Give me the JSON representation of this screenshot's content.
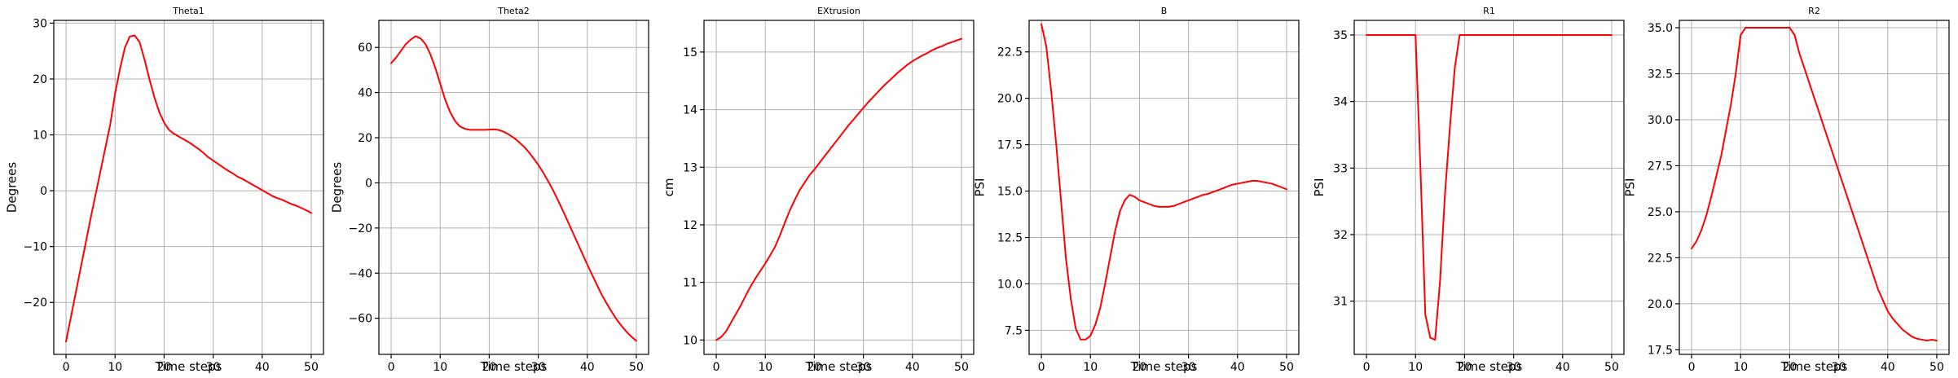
{
  "figure": {
    "background": "#ffffff",
    "line_color": "#ff0000",
    "grid": true
  },
  "chart_data": [
    {
      "type": "line",
      "title": "Theta1",
      "xlabel": "Time steps",
      "ylabel": "Degrees",
      "xlim": [
        -2.5,
        52.5
      ],
      "ylim": [
        -29.3,
        30.5
      ],
      "xticks": [
        0,
        10,
        20,
        30,
        40,
        50
      ],
      "xticklabels": [
        "0",
        "10",
        "20",
        "30",
        "40",
        "50"
      ],
      "yticks": [
        -20,
        -10,
        0,
        10,
        20,
        30
      ],
      "yticklabels": [
        "−20",
        "−10",
        "0",
        "10",
        "20",
        "30"
      ],
      "grid": true,
      "x": [
        0,
        1,
        2,
        3,
        4,
        5,
        6,
        7,
        8,
        9,
        10,
        11,
        12,
        13,
        14,
        15,
        16,
        17,
        18,
        19,
        20,
        21,
        22,
        23,
        24,
        25,
        26,
        27,
        28,
        29,
        30,
        31,
        32,
        33,
        34,
        35,
        36,
        37,
        38,
        39,
        40,
        41,
        42,
        43,
        44,
        45,
        46,
        47,
        48,
        49,
        50
      ],
      "series": [
        {
          "color": "#ff0000",
          "values": [
            -27,
            -22.6,
            -18.2,
            -13.8,
            -9.4,
            -5,
            -0.8,
            3.4,
            7.6,
            11.8,
            17.4,
            21.8,
            25.6,
            27.6,
            27.8,
            26.6,
            23.5,
            20,
            16.8,
            14.1,
            12.2,
            10.9,
            10.2,
            9.7,
            9.2,
            8.7,
            8.1,
            7.5,
            6.8,
            6,
            5.4,
            4.8,
            4.2,
            3.6,
            3.1,
            2.5,
            2.1,
            1.6,
            1.1,
            0.6,
            0.1,
            -0.4,
            -0.9,
            -1.3,
            -1.6,
            -2,
            -2.4,
            -2.7,
            -3.1,
            -3.5,
            -4
          ]
        }
      ]
    },
    {
      "type": "line",
      "title": "Theta2",
      "xlabel": "Time steps",
      "ylabel": "Degrees",
      "xlim": [
        -2.5,
        52.5
      ],
      "ylim": [
        -76,
        72
      ],
      "xticks": [
        0,
        10,
        20,
        30,
        40,
        50
      ],
      "xticklabels": [
        "0",
        "10",
        "20",
        "30",
        "40",
        "50"
      ],
      "yticks": [
        -60,
        -40,
        -20,
        0,
        20,
        40,
        60
      ],
      "yticklabels": [
        "−60",
        "−40",
        "−20",
        "0",
        "20",
        "40",
        "60"
      ],
      "grid": true,
      "x": [
        0,
        1,
        2,
        3,
        4,
        5,
        6,
        7,
        8,
        9,
        10,
        11,
        12,
        13,
        14,
        15,
        16,
        17,
        18,
        19,
        20,
        21,
        22,
        23,
        24,
        25,
        26,
        27,
        28,
        29,
        30,
        31,
        32,
        33,
        34,
        35,
        36,
        37,
        38,
        39,
        40,
        41,
        42,
        43,
        44,
        45,
        46,
        47,
        48,
        49,
        50
      ],
      "series": [
        {
          "color": "#ff0000",
          "values": [
            53,
            55.5,
            58.5,
            61.5,
            63.5,
            65,
            64,
            61.5,
            57,
            51,
            44,
            37,
            31.5,
            27.5,
            25,
            24,
            23.5,
            23.5,
            23.5,
            23.5,
            23.6,
            23.7,
            23.4,
            22.6,
            21.4,
            20,
            18.2,
            16.2,
            13.8,
            11,
            8,
            4.6,
            0.8,
            -3.2,
            -7.6,
            -12.2,
            -17,
            -21.8,
            -26.6,
            -31.4,
            -36.2,
            -40.8,
            -45.4,
            -49.8,
            -53.6,
            -57.2,
            -60.6,
            -63.4,
            -66,
            -68.2,
            -70
          ]
        }
      ]
    },
    {
      "type": "line",
      "title": "EXtrusion",
      "xlabel": "Time steps",
      "ylabel": "cm",
      "xlim": [
        -2.5,
        52.5
      ],
      "ylim": [
        9.75,
        15.55
      ],
      "xticks": [
        0,
        10,
        20,
        30,
        40,
        50
      ],
      "xticklabels": [
        "0",
        "10",
        "20",
        "30",
        "40",
        "50"
      ],
      "yticks": [
        10,
        11,
        12,
        13,
        14,
        15
      ],
      "yticklabels": [
        "10",
        "11",
        "12",
        "13",
        "14",
        "15"
      ],
      "grid": true,
      "x": [
        0,
        1,
        2,
        3,
        4,
        5,
        6,
        7,
        8,
        9,
        10,
        11,
        12,
        13,
        14,
        15,
        16,
        17,
        18,
        19,
        20,
        21,
        22,
        23,
        24,
        25,
        26,
        27,
        28,
        29,
        30,
        31,
        32,
        33,
        34,
        35,
        36,
        37,
        38,
        39,
        40,
        41,
        42,
        43,
        44,
        45,
        46,
        47,
        48,
        49,
        50
      ],
      "series": [
        {
          "color": "#ff0000",
          "values": [
            10,
            10.05,
            10.15,
            10.3,
            10.45,
            10.6,
            10.77,
            10.93,
            11.07,
            11.2,
            11.33,
            11.47,
            11.62,
            11.82,
            12.04,
            12.25,
            12.43,
            12.6,
            12.73,
            12.86,
            12.96,
            13.07,
            13.18,
            13.29,
            13.4,
            13.51,
            13.62,
            13.73,
            13.83,
            13.93,
            14.03,
            14.13,
            14.22,
            14.31,
            14.4,
            14.48,
            14.56,
            14.64,
            14.71,
            14.78,
            14.84,
            14.89,
            14.94,
            14.98,
            15.03,
            15.07,
            15.1,
            15.14,
            15.17,
            15.2,
            15.23
          ]
        }
      ]
    },
    {
      "type": "line",
      "title": "B",
      "xlabel": "Time steps",
      "ylabel": "PSI",
      "xlim": [
        -2.5,
        52.5
      ],
      "ylim": [
        6.2,
        24.2
      ],
      "xticks": [
        0,
        10,
        20,
        30,
        40,
        50
      ],
      "xticklabels": [
        "0",
        "10",
        "20",
        "30",
        "40",
        "50"
      ],
      "yticks": [
        7.5,
        10.0,
        12.5,
        15.0,
        17.5,
        20.0,
        22.5
      ],
      "yticklabels": [
        "7.5",
        "10.0",
        "12.5",
        "15.0",
        "17.5",
        "20.0",
        "22.5"
      ],
      "grid": true,
      "x": [
        0,
        1,
        2,
        3,
        4,
        5,
        6,
        7,
        8,
        9,
        10,
        11,
        12,
        13,
        14,
        15,
        16,
        17,
        18,
        19,
        20,
        21,
        22,
        23,
        24,
        25,
        26,
        27,
        28,
        29,
        30,
        31,
        32,
        33,
        34,
        35,
        36,
        37,
        38,
        39,
        40,
        41,
        42,
        43,
        44,
        45,
        46,
        47,
        48,
        49,
        50
      ],
      "series": [
        {
          "color": "#ff0000",
          "values": [
            24,
            22.8,
            20.4,
            17.6,
            14.5,
            11.4,
            9.2,
            7.6,
            7,
            7,
            7.2,
            7.8,
            8.7,
            10,
            11.4,
            12.8,
            13.9,
            14.5,
            14.8,
            14.7,
            14.5,
            14.4,
            14.3,
            14.2,
            14.15,
            14.15,
            14.15,
            14.2,
            14.3,
            14.4,
            14.5,
            14.6,
            14.7,
            14.8,
            14.85,
            14.95,
            15.05,
            15.15,
            15.25,
            15.35,
            15.4,
            15.45,
            15.5,
            15.55,
            15.55,
            15.5,
            15.45,
            15.4,
            15.3,
            15.2,
            15.1
          ]
        }
      ]
    },
    {
      "type": "line",
      "title": "R1",
      "xlabel": "Time steps",
      "ylabel": "PSI",
      "xlim": [
        -2.5,
        52.5
      ],
      "ylim": [
        30.2,
        35.22
      ],
      "xticks": [
        0,
        10,
        20,
        30,
        40,
        50
      ],
      "xticklabels": [
        "0",
        "10",
        "20",
        "30",
        "40",
        "50"
      ],
      "yticks": [
        31,
        32,
        33,
        34,
        35
      ],
      "yticklabels": [
        "31",
        "32",
        "33",
        "34",
        "35"
      ],
      "grid": true,
      "x": [
        0,
        1,
        2,
        3,
        4,
        5,
        6,
        7,
        8,
        9,
        10,
        11,
        12,
        13,
        14,
        15,
        16,
        17,
        18,
        19,
        20,
        21,
        22,
        23,
        24,
        25,
        26,
        27,
        28,
        29,
        30,
        31,
        32,
        33,
        34,
        35,
        36,
        37,
        38,
        39,
        40,
        41,
        42,
        43,
        44,
        45,
        46,
        47,
        48,
        49,
        50
      ],
      "series": [
        {
          "color": "#ff0000",
          "values": [
            35,
            35,
            35,
            35,
            35,
            35,
            35,
            35,
            35,
            35,
            35,
            33,
            30.8,
            30.45,
            30.42,
            31.3,
            32.6,
            33.6,
            34.5,
            35,
            35,
            35,
            35,
            35,
            35,
            35,
            35,
            35,
            35,
            35,
            35,
            35,
            35,
            35,
            35,
            35,
            35,
            35,
            35,
            35,
            35,
            35,
            35,
            35,
            35,
            35,
            35,
            35,
            35,
            35,
            35
          ]
        }
      ]
    },
    {
      "type": "line",
      "title": "R2",
      "xlabel": "Time steps",
      "ylabel": "PSI",
      "xlim": [
        -2.5,
        52.5
      ],
      "ylim": [
        17.25,
        35.4
      ],
      "xticks": [
        0,
        10,
        20,
        30,
        40,
        50
      ],
      "xticklabels": [
        "0",
        "10",
        "20",
        "30",
        "40",
        "50"
      ],
      "yticks": [
        17.5,
        20.0,
        22.5,
        25.0,
        27.5,
        30.0,
        32.5,
        35.0
      ],
      "yticklabels": [
        "17.5",
        "20.0",
        "22.5",
        "25.0",
        "27.5",
        "30.0",
        "32.5",
        "35.0"
      ],
      "grid": true,
      "x": [
        0,
        1,
        2,
        3,
        4,
        5,
        6,
        7,
        8,
        9,
        10,
        11,
        12,
        13,
        14,
        15,
        16,
        17,
        18,
        19,
        20,
        21,
        22,
        23,
        24,
        25,
        26,
        27,
        28,
        29,
        30,
        31,
        32,
        33,
        34,
        35,
        36,
        37,
        38,
        39,
        40,
        41,
        42,
        43,
        44,
        45,
        46,
        47,
        48,
        49,
        50
      ],
      "series": [
        {
          "color": "#ff0000",
          "values": [
            23,
            23.4,
            24,
            24.8,
            25.8,
            26.9,
            28,
            29.4,
            30.8,
            32.5,
            34.6,
            35,
            35,
            35,
            35,
            35,
            35,
            35,
            35,
            35,
            35,
            34.6,
            33.6,
            32.8,
            32,
            31.2,
            30.4,
            29.6,
            28.8,
            28,
            27.2,
            26.4,
            25.6,
            24.8,
            24,
            23.2,
            22.4,
            21.6,
            20.8,
            20.2,
            19.6,
            19.2,
            18.9,
            18.6,
            18.4,
            18.2,
            18.1,
            18.05,
            18,
            18.05,
            18
          ]
        }
      ]
    }
  ]
}
